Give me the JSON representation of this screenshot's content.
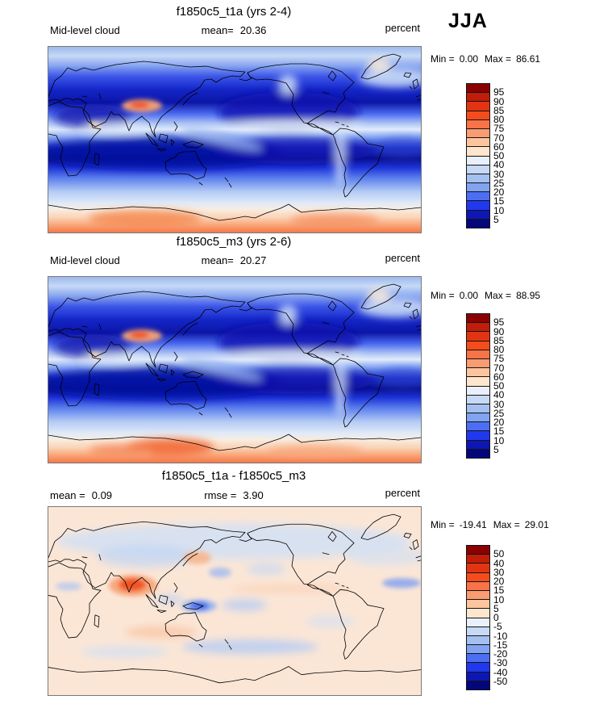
{
  "season": "JJA",
  "palette": {
    "colors": [
      "#8b0000",
      "#c11d08",
      "#e23413",
      "#f54c1d",
      "#f87347",
      "#fa9c72",
      "#fcc59e",
      "#fde6cd",
      "#e9f0fb",
      "#c6d9f5",
      "#a4c0f0",
      "#80a3f2",
      "#4b6ef3",
      "#2038ee",
      "#0d17b5",
      "#03077a"
    ]
  },
  "panels": [
    {
      "title": "f1850c5_t1a (yrs 2-4)",
      "variable": "Mid-level cloud",
      "mean_label": "mean=",
      "mean_value": "20.36",
      "units": "percent",
      "min_label": "Min =",
      "min_value": "0.00",
      "max_label": "Max =",
      "max_value": "86.61",
      "colorbar_labels": [
        "95",
        "90",
        "85",
        "80",
        "75",
        "70",
        "60",
        "50",
        "40",
        "30",
        "25",
        "20",
        "15",
        "10",
        "5"
      ]
    },
    {
      "title": "f1850c5_m3 (yrs 2-6)",
      "variable": "Mid-level cloud",
      "mean_label": "mean=",
      "mean_value": "20.27",
      "units": "percent",
      "min_label": "Min =",
      "min_value": "0.00",
      "max_label": "Max =",
      "max_value": "88.95",
      "colorbar_labels": [
        "95",
        "90",
        "85",
        "80",
        "75",
        "70",
        "60",
        "50",
        "40",
        "30",
        "25",
        "20",
        "15",
        "10",
        "5"
      ]
    },
    {
      "title": "f1850c5_t1a - f1850c5_m3",
      "mean_label": "mean =",
      "mean_value": "0.09",
      "rmse_label": "rmse =",
      "rmse_value": "3.90",
      "units": "percent",
      "min_label": "Min =",
      "min_value": "-19.41",
      "max_label": "Max =",
      "max_value": "29.01",
      "colorbar_labels": [
        "50",
        "40",
        "30",
        "20",
        "15",
        "10",
        "5",
        "0",
        "-5",
        "-10",
        "-15",
        "-20",
        "-30",
        "-40",
        "-50"
      ]
    }
  ],
  "chart_data": [
    {
      "type": "heatmap",
      "title": "f1850c5_t1a (yrs 2-4)",
      "variable": "Mid-level cloud",
      "season": "JJA",
      "units": "percent",
      "mean": 20.36,
      "min": 0.0,
      "max": 86.61,
      "contour_levels": [
        5,
        10,
        15,
        20,
        25,
        30,
        40,
        50,
        60,
        70,
        75,
        80,
        85,
        90,
        95
      ],
      "legend_position": "right",
      "field_summary": "Global lat-lon map: low values (blues) over tropics and subtropical oceans, light bands along ITCZ and midlatitude storm tracks, high values (orange/red) over Tibetan Plateau and Antarctic coast/Southern Ocean edge"
    },
    {
      "type": "heatmap",
      "title": "f1850c5_m3 (yrs 2-6)",
      "variable": "Mid-level cloud",
      "season": "JJA",
      "units": "percent",
      "mean": 20.27,
      "min": 0.0,
      "max": 88.95,
      "contour_levels": [
        5,
        10,
        15,
        20,
        25,
        30,
        40,
        50,
        60,
        70,
        75,
        80,
        85,
        90,
        95
      ],
      "legend_position": "right",
      "field_summary": "Same pattern as top panel; slightly stronger orange maximum near Antarctic coast around 60-130E"
    },
    {
      "type": "heatmap",
      "title": "f1850c5_t1a - f1850c5_m3",
      "season": "JJA",
      "units": "percent",
      "mean": 0.09,
      "rmse": 3.9,
      "min": -19.41,
      "max": 29.01,
      "contour_levels": [
        -50,
        -40,
        -30,
        -20,
        -15,
        -10,
        -5,
        0,
        5,
        10,
        15,
        20,
        30,
        40,
        50
      ],
      "legend_position": "right",
      "field_summary": "Difference map: mostly near zero (pale peach/pale blue); positive (red-orange) maximum over Arabian Sea/India, negative (blue) patch near New Guinea and in southern midlatitude oceans"
    }
  ]
}
